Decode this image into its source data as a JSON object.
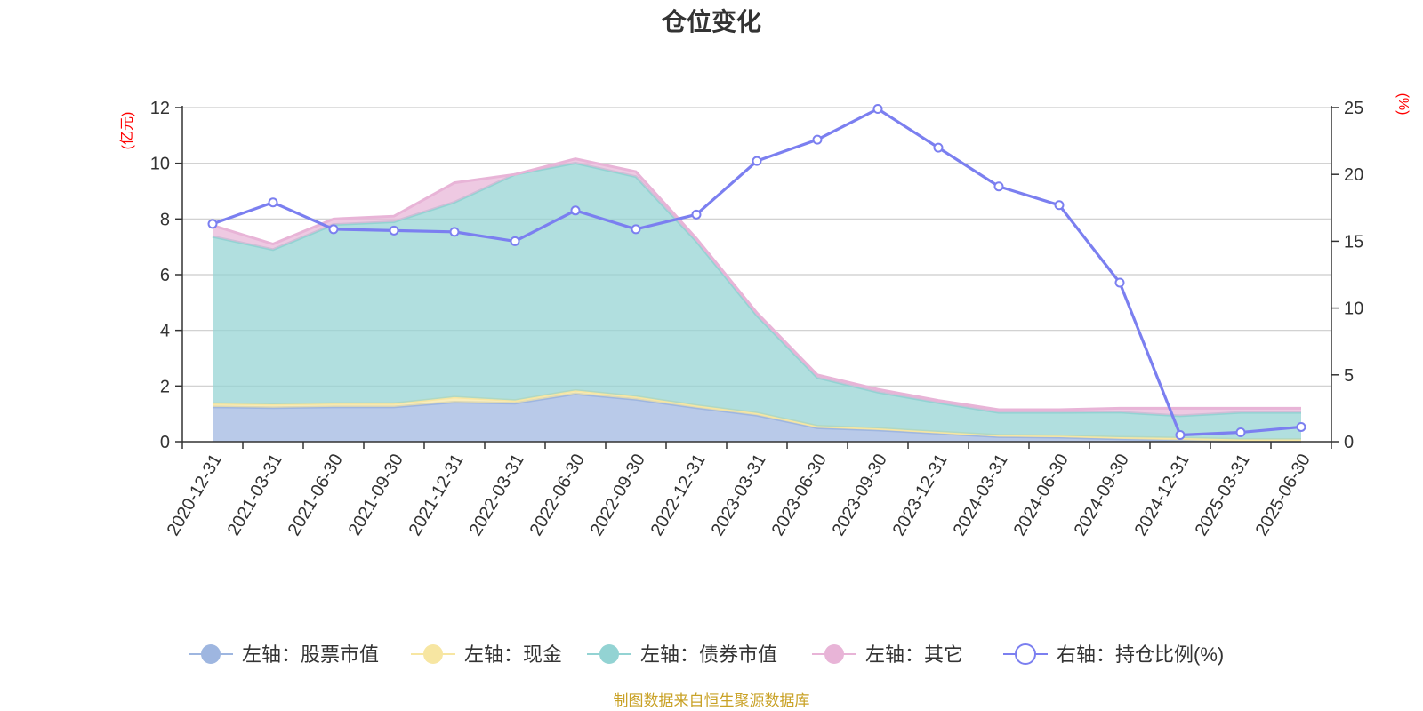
{
  "chart_data": {
    "type": "area",
    "title": "仓位变化",
    "left_axis": {
      "unit": "(亿元)",
      "ylim": [
        0,
        12
      ],
      "ticks": [
        "0",
        "2",
        "4",
        "6",
        "8",
        "10",
        "12"
      ]
    },
    "right_axis": {
      "unit": "(%)",
      "ylim": [
        0,
        25
      ],
      "ticks": [
        "0",
        "5",
        "10",
        "15",
        "20",
        "25"
      ]
    },
    "grid": true,
    "legend_position": "bottom",
    "categories": [
      "2020-12-31",
      "2021-03-31",
      "2021-06-30",
      "2021-09-30",
      "2021-12-31",
      "2022-03-31",
      "2022-06-30",
      "2022-09-30",
      "2022-12-31",
      "2023-03-31",
      "2023-06-30",
      "2023-09-30",
      "2023-12-31",
      "2024-03-31",
      "2024-06-30",
      "2024-09-30",
      "2024-12-31",
      "2025-03-31",
      "2025-06-30"
    ],
    "series": [
      {
        "name": "左轴：股票市值",
        "axis": "left",
        "type": "area",
        "stacked": true,
        "color": "#9eb6e0",
        "values": [
          1.25,
          1.22,
          1.25,
          1.25,
          1.42,
          1.38,
          1.72,
          1.52,
          1.22,
          0.95,
          0.5,
          0.42,
          0.3,
          0.18,
          0.16,
          0.1,
          0.05,
          0.0,
          0.0
        ]
      },
      {
        "name": "左轴：现金",
        "axis": "left",
        "type": "area",
        "stacked": true,
        "color": "#f7e6a2",
        "values": [
          0.12,
          0.12,
          0.12,
          0.12,
          0.18,
          0.1,
          0.12,
          0.1,
          0.08,
          0.08,
          0.06,
          0.06,
          0.05,
          0.05,
          0.05,
          0.06,
          0.08,
          0.08,
          0.08
        ]
      },
      {
        "name": "左轴：债券市值",
        "axis": "left",
        "type": "area",
        "stacked": true,
        "color": "#93d3d3",
        "values": [
          6.0,
          5.56,
          6.43,
          6.53,
          7.0,
          8.12,
          8.17,
          7.9,
          5.9,
          3.5,
          1.74,
          1.3,
          1.05,
          0.82,
          0.84,
          0.9,
          0.8,
          0.97,
          0.97
        ]
      },
      {
        "name": "左轴：其它",
        "axis": "left",
        "type": "area",
        "stacked": true,
        "color": "#e8b4d7",
        "values": [
          0.4,
          0.2,
          0.2,
          0.2,
          0.7,
          0.0,
          0.15,
          0.18,
          0.1,
          0.1,
          0.1,
          0.1,
          0.08,
          0.1,
          0.1,
          0.14,
          0.27,
          0.15,
          0.15
        ]
      },
      {
        "name": "右轴：持仓比例(%)",
        "axis": "right",
        "type": "line",
        "color": "#7b7ff0",
        "values": [
          16.3,
          17.9,
          15.9,
          15.8,
          15.7,
          15.0,
          17.3,
          15.9,
          17.0,
          21.0,
          22.6,
          24.9,
          22.0,
          19.1,
          17.7,
          11.9,
          0.5,
          0.7,
          1.1
        ]
      }
    ]
  },
  "footer": {
    "source": "制图数据来自恒生聚源数据库"
  }
}
